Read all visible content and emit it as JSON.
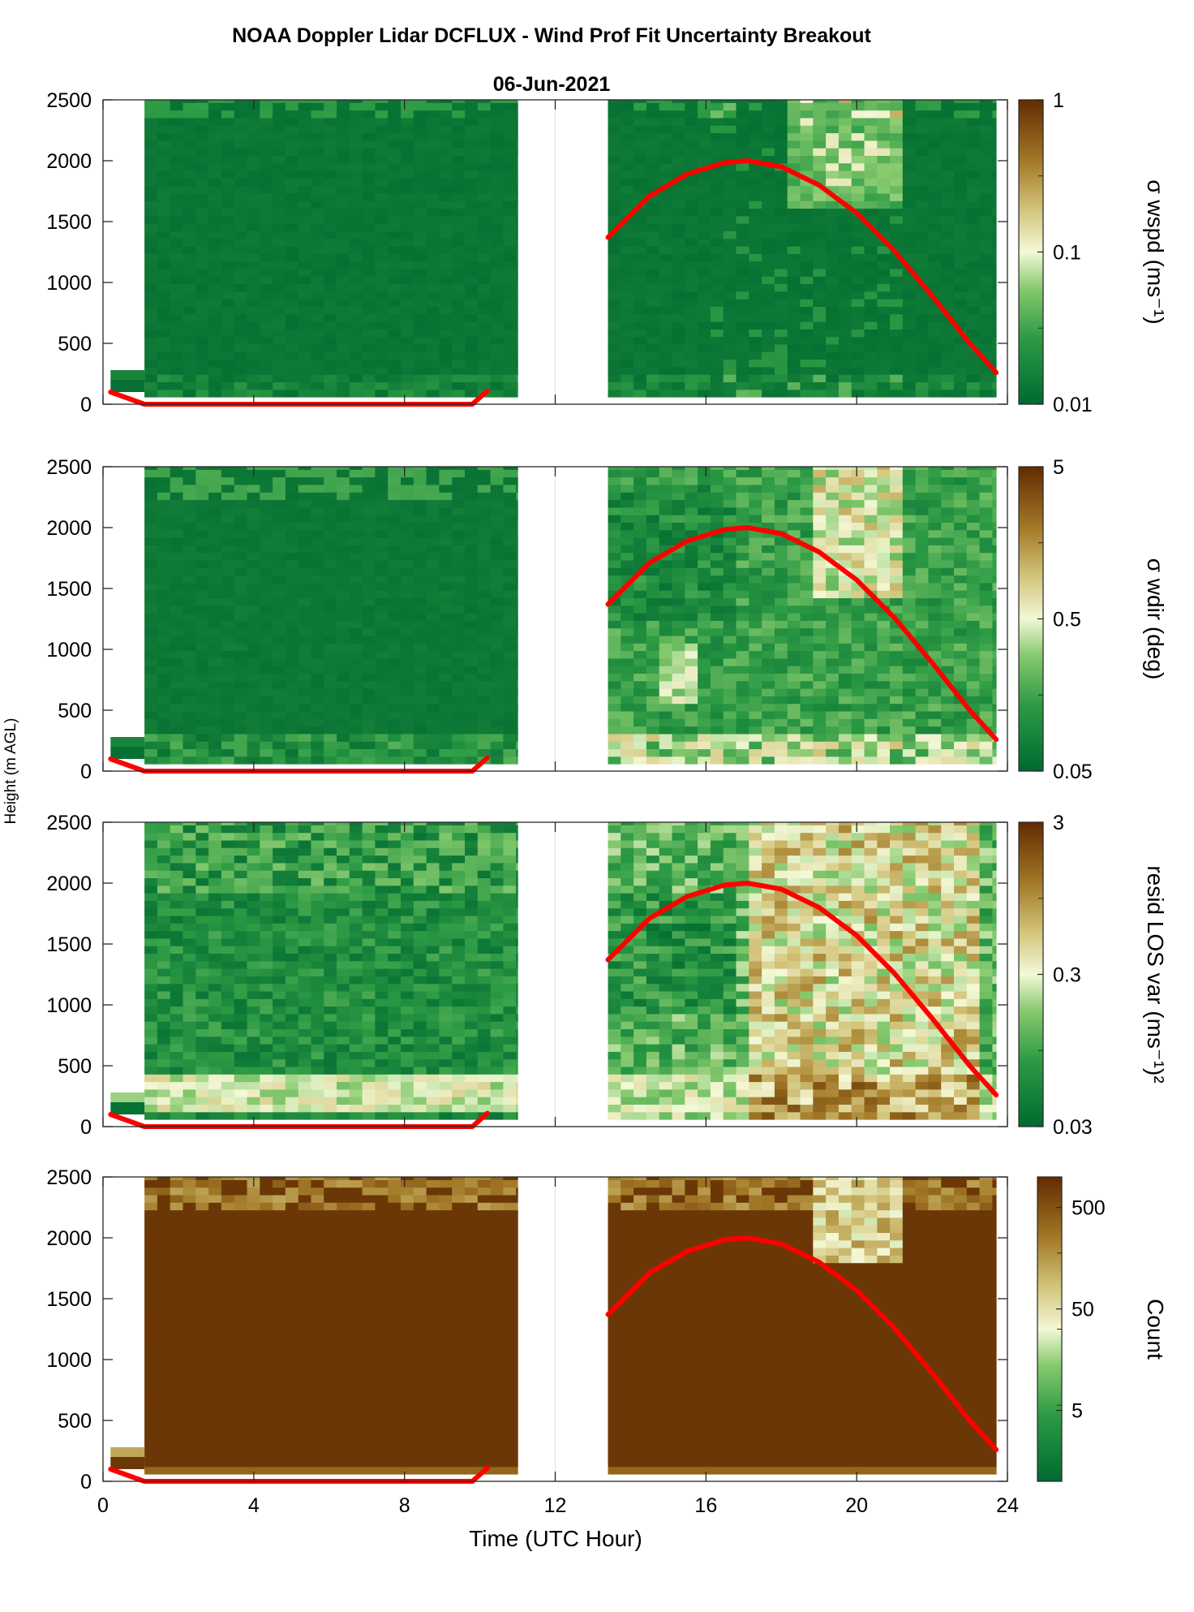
{
  "figure": {
    "title": "NOAA Doppler Lidar DCFLUX - Wind Prof Fit Uncertainty Breakout",
    "subtitle": "06-Jun-2021",
    "xlabel": "Time (UTC Hour)",
    "ylabel": "Height (m AGL)",
    "colors": {
      "low": "#006a30",
      "mid": "#f3f8d6",
      "high": "#632b00",
      "line": "#ff0000"
    }
  },
  "chart_data": [
    {
      "type": "heatmap",
      "panel": "sigma-wspd",
      "cbar_label": "σ wspd (ms⁻¹)",
      "cbar_ticks": [
        "1",
        "0.1",
        "0.01"
      ],
      "cbar_scale": "log",
      "clim": [
        0.01,
        1
      ],
      "xlim": [
        0,
        24
      ],
      "ylim": [
        0,
        2500
      ],
      "x_ticks": [
        "0",
        "4",
        "8",
        "12",
        "16",
        "20",
        "24"
      ],
      "y_ticks": [
        "2500",
        "2000",
        "1500",
        "1000",
        "500",
        "0"
      ],
      "data_intervals": [
        [
          1.1,
          11.0
        ],
        [
          13.4,
          23.7
        ]
      ],
      "pattern": "mostly low (~0.01) with patches near 0.05 above 2000 m between 18 and 21 UTC"
    },
    {
      "type": "heatmap",
      "panel": "sigma-wdir",
      "cbar_label": "σ wdir (deg)",
      "cbar_ticks": [
        "5",
        "0.5",
        "0.05"
      ],
      "cbar_scale": "log",
      "clim": [
        0.05,
        5
      ],
      "xlim": [
        0,
        24
      ],
      "ylim": [
        0,
        2500
      ],
      "x_ticks": [
        "0",
        "4",
        "8",
        "12",
        "16",
        "20",
        "24"
      ],
      "y_ticks": [
        "2500",
        "2000",
        "1500",
        "1000",
        "500",
        "0"
      ],
      "data_intervals": [
        [
          1.1,
          11.0
        ],
        [
          13.4,
          23.7
        ]
      ],
      "pattern": "low before 11 UTC; elevated (0.2-1 deg) after 13.4 UTC, peaking near 19-20 UTC"
    },
    {
      "type": "heatmap",
      "panel": "resid-los-var",
      "cbar_label": "resid LOS var (ms⁻¹)²",
      "cbar_ticks": [
        "3",
        "0.3",
        "0.03"
      ],
      "cbar_scale": "log",
      "clim": [
        0.03,
        3
      ],
      "xlim": [
        0,
        24
      ],
      "ylim": [
        0,
        2500
      ],
      "x_ticks": [
        "0",
        "4",
        "8",
        "12",
        "16",
        "20",
        "24"
      ],
      "y_ticks": [
        "2500",
        "2000",
        "1500",
        "1000",
        "500",
        "0"
      ],
      "data_intervals": [
        [
          1.1,
          11.0
        ],
        [
          13.4,
          23.7
        ]
      ],
      "pattern": "near-surface layer elevated (~0.5) 4-9 UTC; broad elevated region 17-23 UTC"
    },
    {
      "type": "heatmap",
      "panel": "count",
      "cbar_label": "Count",
      "cbar_ticks": [
        "500",
        "50",
        "5"
      ],
      "cbar_scale": "log",
      "clim": [
        1,
        1000
      ],
      "xlim": [
        0,
        24
      ],
      "ylim": [
        0,
        2500
      ],
      "x_ticks": [
        "0",
        "4",
        "8",
        "12",
        "16",
        "20",
        "24"
      ],
      "y_ticks": [
        "2500",
        "2000",
        "1500",
        "1000",
        "500",
        "0"
      ],
      "data_intervals": [
        [
          1.1,
          11.0
        ],
        [
          13.4,
          23.7
        ]
      ],
      "pattern": "mostly saturated (~500); reduced counts above 2200 m and 1800-2500 m at 19-21 UTC"
    }
  ],
  "overlay_line": {
    "name": "",
    "segment_morning": {
      "x": [
        0.2,
        1.1,
        9.8,
        10.2
      ],
      "y": [
        100,
        0,
        0,
        110
      ]
    },
    "segment_afternoon": {
      "x": [
        13.4,
        14.5,
        15.5,
        16.5,
        17.1,
        18.0,
        19.0,
        20.0,
        21.0,
        22.0,
        23.0,
        23.7
      ],
      "y": [
        1370,
        1710,
        1890,
        1985,
        2000,
        1950,
        1800,
        1570,
        1260,
        890,
        500,
        260
      ]
    }
  }
}
